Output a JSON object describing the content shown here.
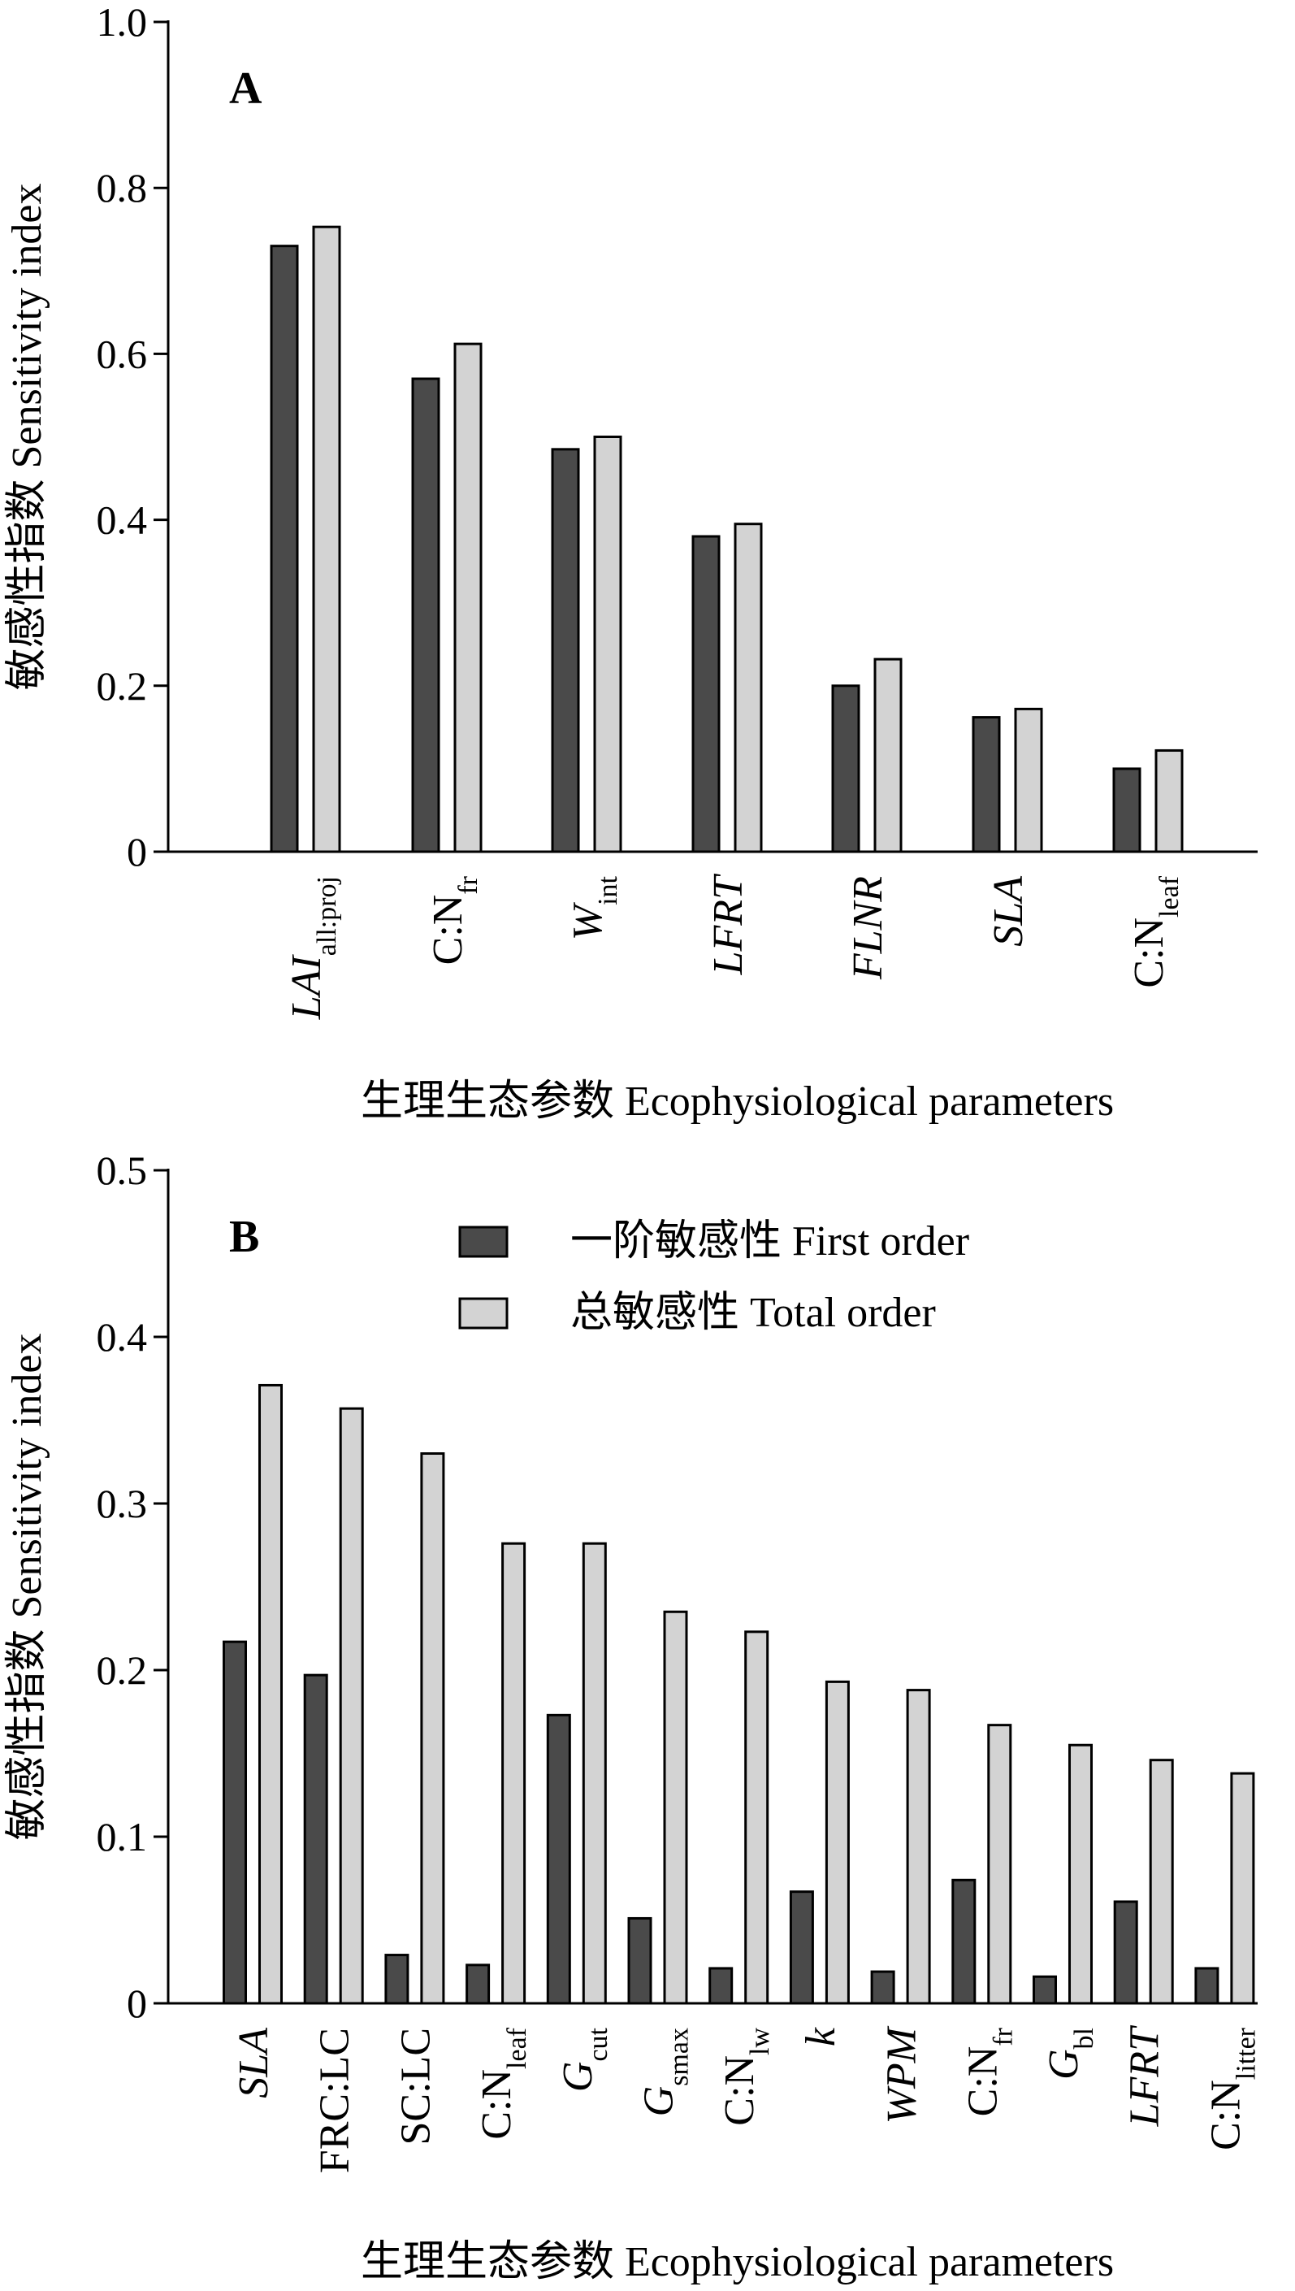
{
  "chart_data": [
    {
      "type": "bar",
      "panel_label": "A",
      "categories": [
        {
          "base": "LAI",
          "sub": "all:proj",
          "italic": true
        },
        {
          "base": "C:N",
          "sub": "fr",
          "italic": false
        },
        {
          "base": "W",
          "sub": "int",
          "italic": true
        },
        {
          "base": "LFRT",
          "sub": "",
          "italic": true
        },
        {
          "base": "FLNR",
          "sub": "",
          "italic": true
        },
        {
          "base": "SLA",
          "sub": "",
          "italic": true
        },
        {
          "base": "C:N",
          "sub": "leaf",
          "italic": false
        }
      ],
      "series": [
        {
          "name": "一阶敏感性 First order",
          "values": [
            0.73,
            0.57,
            0.485,
            0.38,
            0.2,
            0.162,
            0.1
          ]
        },
        {
          "name": "总敏感性 Total order",
          "values": [
            0.753,
            0.612,
            0.5,
            0.395,
            0.232,
            0.172,
            0.122
          ]
        }
      ],
      "xlabel": "生理生态参数 Ecophysiological parameters",
      "ylabel": "敏感性指数 Sensitivity index",
      "ylim": [
        0,
        1.0
      ],
      "yticks": [
        "0",
        "0.2",
        "0.4",
        "0.6",
        "0.8",
        "1.0"
      ],
      "grid": false,
      "legend": false
    },
    {
      "type": "bar",
      "panel_label": "B",
      "categories": [
        {
          "base": "SLA",
          "sub": "",
          "italic": true
        },
        {
          "base": "FRC:LC",
          "sub": "",
          "italic": false
        },
        {
          "base": "SC:LC",
          "sub": "",
          "italic": false
        },
        {
          "base": "C:N",
          "sub": "leaf",
          "italic": false
        },
        {
          "base": "G",
          "sub": "cut",
          "italic": true
        },
        {
          "base": "G",
          "sub": "smax",
          "italic": true
        },
        {
          "base": "C:N",
          "sub": "lw",
          "italic": false
        },
        {
          "base": "k",
          "sub": "",
          "italic": true
        },
        {
          "base": "WPM",
          "sub": "",
          "italic": true
        },
        {
          "base": "C:N",
          "sub": "fr",
          "italic": false
        },
        {
          "base": "G",
          "sub": "bl",
          "italic": true
        },
        {
          "base": "LFRT",
          "sub": "",
          "italic": true
        },
        {
          "base": "C:N",
          "sub": "litter",
          "italic": false
        }
      ],
      "series": [
        {
          "name": "一阶敏感性 First order",
          "values": [
            0.217,
            0.197,
            0.029,
            0.023,
            0.173,
            0.051,
            0.021,
            0.067,
            0.019,
            0.074,
            0.016,
            0.061,
            0.021
          ]
        },
        {
          "name": "总敏感性 Total order",
          "values": [
            0.371,
            0.357,
            0.33,
            0.276,
            0.276,
            0.235,
            0.223,
            0.193,
            0.188,
            0.167,
            0.155,
            0.146,
            0.138
          ]
        }
      ],
      "xlabel": "生理生态参数 Ecophysiological parameters",
      "ylabel": "敏感性指数 Sensitivity index",
      "ylim": [
        0,
        0.5
      ],
      "yticks": [
        "0",
        "0.1",
        "0.2",
        "0.3",
        "0.4",
        "0.5"
      ],
      "grid": false,
      "legend": true,
      "legend_position": "top-center"
    }
  ],
  "colors": {
    "first_order": "#4a4a4a",
    "total_order": "#d3d3d3",
    "axis": "#000000"
  }
}
